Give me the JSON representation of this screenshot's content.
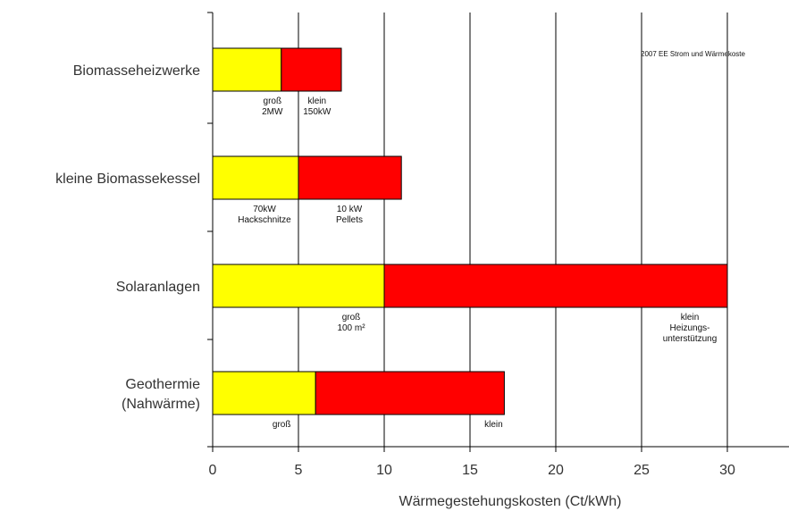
{
  "chart_data": {
    "type": "bar",
    "orientation": "horizontal",
    "stacked": false,
    "xlabel": "Wärmegestehungskosten (Ct/kWh)",
    "ylabel": "",
    "xlim": [
      0,
      30
    ],
    "xticks": [
      "0",
      "5",
      "10",
      "15",
      "20",
      "25",
      "30"
    ],
    "grid": "vertical lines",
    "note": "2007 EE Strom und Wärmekoste",
    "categories": [
      "Biomasseheizwerke",
      "kleine Biomassekessel",
      "Solaranlagen",
      "Geothermie (Nahwärme)"
    ],
    "bars": [
      {
        "category": "Biomasseheizwerke",
        "label_lines": [
          "Biomasseheizwerke"
        ],
        "low": 0,
        "mid": 4,
        "high": 7.5,
        "low_color": "#ffff00",
        "high_color": "#ff0000",
        "low_annotation": [
          "groß",
          "2MW"
        ],
        "high_annotation": [
          "klein",
          "150kW"
        ]
      },
      {
        "category": "kleine Biomassekessel",
        "label_lines": [
          "kleine Biomassekessel"
        ],
        "low": 0,
        "mid": 5,
        "high": 11,
        "low_color": "#ffff00",
        "high_color": "#ff0000",
        "low_annotation": [
          "70kW",
          "Hackschnitze"
        ],
        "high_annotation": [
          "10 kW",
          "Pellets"
        ]
      },
      {
        "category": "Solaranlagen",
        "label_lines": [
          "Solaranlagen"
        ],
        "low": 0,
        "mid": 10,
        "high": 30,
        "low_color": "#ffff00",
        "high_color": "#ff0000",
        "low_annotation": [
          "groß",
          "100 m²"
        ],
        "high_annotation": [
          "klein",
          "Heizungs-",
          "unterstützung"
        ]
      },
      {
        "category": "Geothermie (Nahwärme)",
        "label_lines": [
          "Geothermie",
          "(Nahwärme)"
        ],
        "low": 0,
        "mid": 6,
        "high": 17,
        "low_color": "#ffff00",
        "high_color": "#ff0000",
        "low_annotation": [
          "groß"
        ],
        "high_annotation": [
          "klein"
        ]
      }
    ]
  }
}
